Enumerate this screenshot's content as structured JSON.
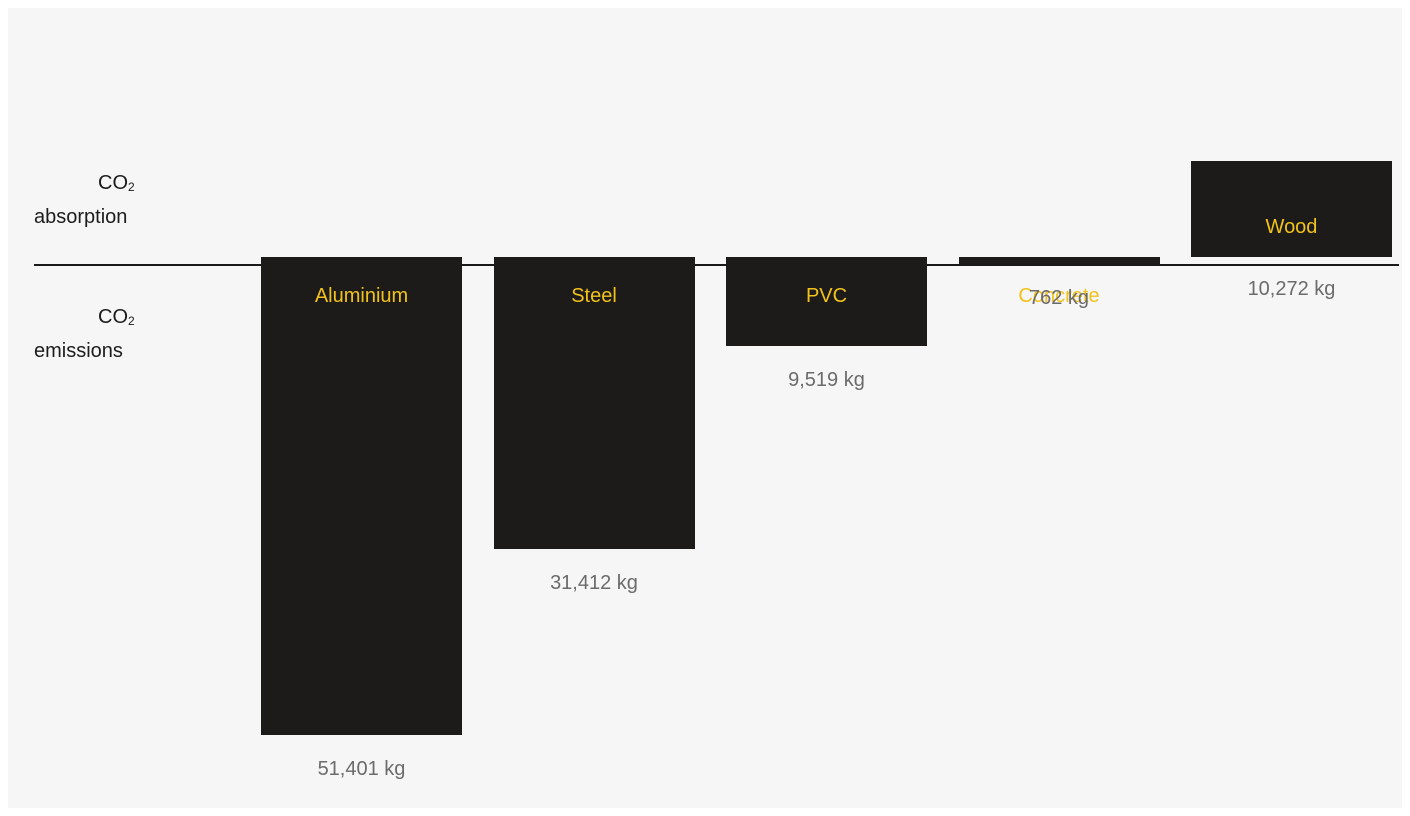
{
  "labels": {
    "absorption_formula": "CO",
    "absorption_subscript": "2",
    "absorption_text": "absorption",
    "emissions_formula": "CO",
    "emissions_subscript": "2",
    "emissions_text": "emissions"
  },
  "colors": {
    "bar": "#1c1b19",
    "category_label": "#f2c21a",
    "value_label": "#6b6b6b",
    "background": "#f6f6f6"
  },
  "chart_data": {
    "type": "bar",
    "title": "",
    "xlabel": "",
    "ylabel": "",
    "categories": [
      "Aluminium",
      "Steel",
      "PVC",
      "Concrete",
      "Wood"
    ],
    "values": [
      -51401,
      -31412,
      -9519,
      -762,
      10272
    ],
    "value_labels": [
      "51,401 kg",
      "31,412 kg",
      "9,519 kg",
      "762 kg",
      "10,272 kg"
    ],
    "unit": "kg",
    "direction": [
      "emissions",
      "emissions",
      "emissions",
      "emissions",
      "absorption"
    ],
    "grid": false,
    "legend": "none"
  }
}
